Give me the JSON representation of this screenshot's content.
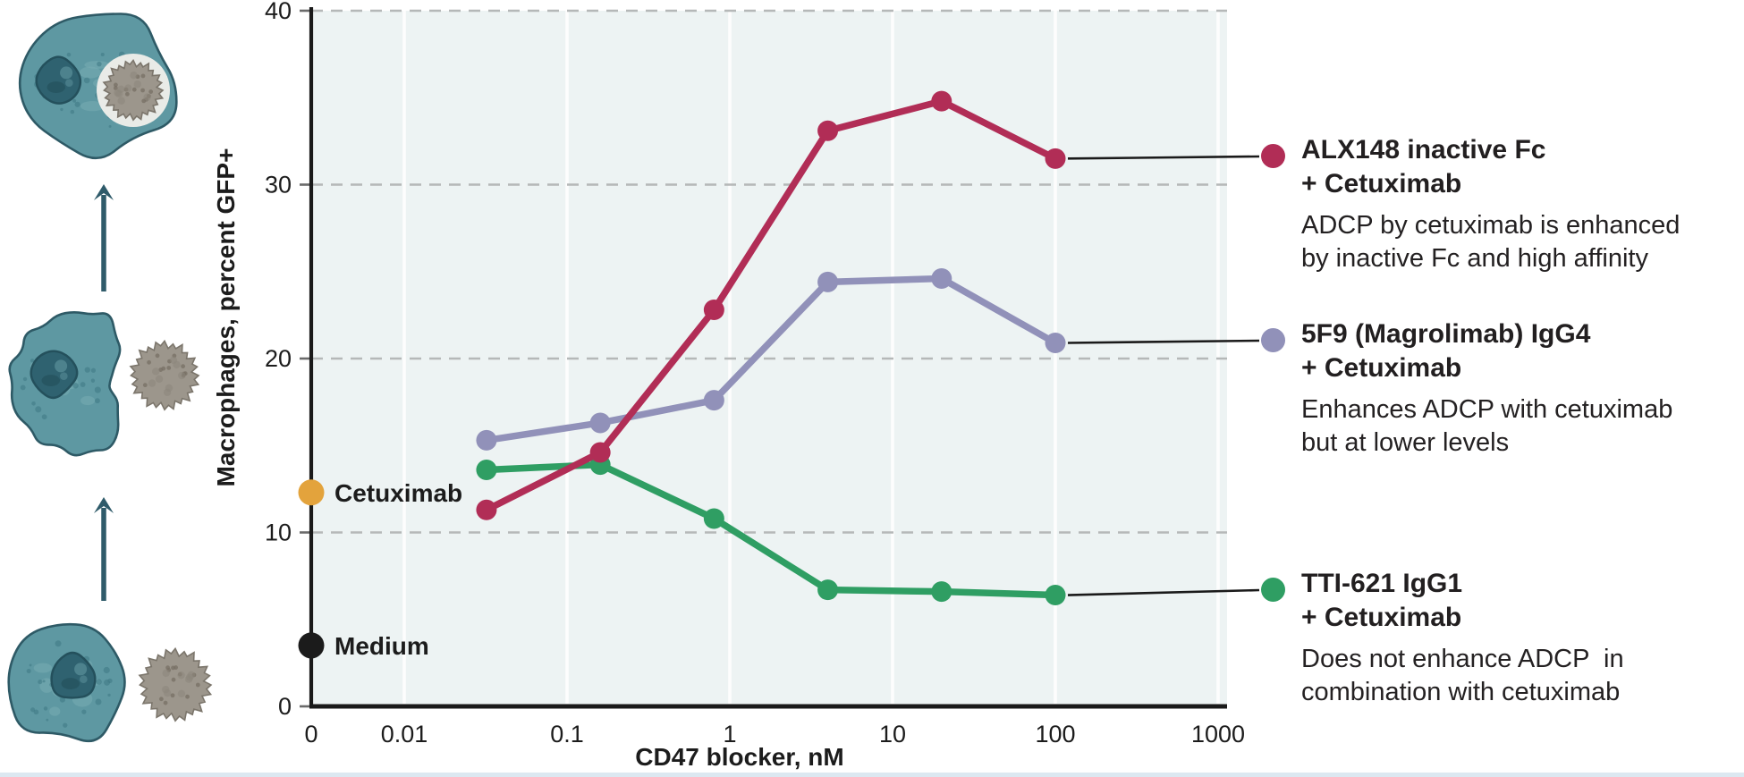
{
  "chart_data": {
    "type": "line",
    "title": "",
    "xlabel": "CD47 blocker, nM",
    "ylabel": "Macrophages, percent GFP+",
    "x_scale": "log",
    "x": [
      0.032,
      0.16,
      0.8,
      4,
      20,
      100
    ],
    "x_tick_labels": [
      "0",
      "0.01",
      "0.1",
      "1",
      "10",
      "100",
      "1000"
    ],
    "y_ticks": [
      0,
      10,
      20,
      30,
      40
    ],
    "ylim": [
      0,
      40
    ],
    "grid": "horizontal dashed gray lines every 10; faint white vertical lines at log decades; legend position right with callout lines",
    "series": [
      {
        "name": "ALX148 inactive Fc + Cetuximab",
        "color": "#b12d56",
        "values": [
          11.3,
          14.6,
          22.8,
          33.1,
          34.8,
          31.5
        ]
      },
      {
        "name": "5F9 (Magrolimab) IgG4 + Cetuximab",
        "color": "#9191b9",
        "values": [
          15.3,
          16.3,
          17.6,
          24.4,
          24.6,
          20.9
        ]
      },
      {
        "name": "TTI-621 IgG1 + Cetuximab",
        "color": "#2f9e63",
        "values": [
          13.6,
          13.9,
          10.8,
          6.7,
          6.6,
          6.4
        ]
      }
    ],
    "reference_points": [
      {
        "label": "Cetuximab",
        "x": 0,
        "y": 12.3,
        "color": "#e3a33c"
      },
      {
        "label": "Medium",
        "x": 0,
        "y": 3.5,
        "color": "#1b1b1b"
      }
    ]
  },
  "legend": {
    "entries": [
      {
        "dot_color": "#b12d56",
        "title_line1": "ALX148 inactive Fc",
        "title_line2": "+ Cetuximab",
        "desc_line1": "ADCP by cetuximab is enhanced",
        "desc_line2": "by inactive Fc and high affinity"
      },
      {
        "dot_color": "#9191b9",
        "title_line1": "5F9 (Magrolimab) IgG4",
        "title_line2": "+ Cetuximab",
        "desc_line1": "Enhances ADCP with cetuximab",
        "desc_line2": "but at lower levels"
      },
      {
        "dot_color": "#2f9e63",
        "title_line1": "TTI-621 IgG1",
        "title_line2": "+ Cetuximab",
        "desc_line1": "Does not enhance ADCP  in",
        "desc_line2": "combination with cetuximab"
      }
    ]
  },
  "illustration": {
    "stage_icons": [
      "macrophage-and-tumor-cell-separate-illustration",
      "macrophage-engaging-tumor-cell-illustration",
      "macrophage-engulfed-tumor-cell-illustration"
    ],
    "arrow_icon": "upward-arrow"
  },
  "colors": {
    "plot_background": "#edf3f3",
    "gridline": "#b5b8b8",
    "axis": "#1a1a1a",
    "connector": "#1a1a1a",
    "text": "#1c1c1c",
    "macrophage_fill": "#5e98a2",
    "macrophage_outline": "#2e5a66",
    "macrophage_patch": "#79adb4",
    "macrophage_speckle": "#3e7884",
    "nucleus_fill": "#2f6270",
    "nucleus_outline": "#24505c",
    "tumor_cell_fill": "#9c968c",
    "tumor_cell_outline": "#7b756b",
    "tumor_cell_speckle": "#776f64",
    "arrow": "#2f5b6a",
    "decade_line": "#ffffff"
  }
}
